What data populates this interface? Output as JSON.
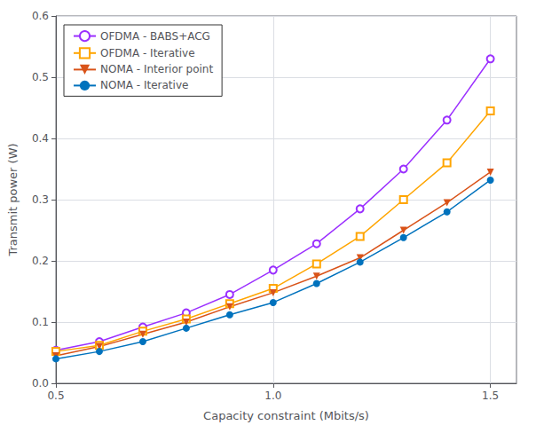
{
  "chart_data": {
    "type": "line",
    "xlabel": "Capacity constraint (Mbits/s)",
    "ylabel": "Transmit power (W)",
    "x": [
      0.5,
      0.6,
      0.7,
      0.8,
      0.9,
      1.0,
      1.1,
      1.2,
      1.3,
      1.4,
      1.5
    ],
    "series": [
      {
        "name": "OFDMA - BABS+ACG",
        "color": "#9B30FF",
        "marker": "circle-open",
        "values": [
          0.054,
          0.068,
          0.092,
          0.115,
          0.145,
          0.185,
          0.228,
          0.285,
          0.35,
          0.43,
          0.53
        ]
      },
      {
        "name": "OFDMA - Iterative",
        "color": "#FFA500",
        "marker": "square-open",
        "values": [
          0.052,
          0.062,
          0.085,
          0.105,
          0.13,
          0.155,
          0.195,
          0.24,
          0.3,
          0.36,
          0.445
        ]
      },
      {
        "name": "NOMA - Interior point",
        "color": "#D95319",
        "marker": "triangle-down",
        "values": [
          0.045,
          0.06,
          0.08,
          0.1,
          0.125,
          0.148,
          0.175,
          0.205,
          0.25,
          0.295,
          0.345
        ]
      },
      {
        "name": "NOMA - Iterative",
        "color": "#0072BD",
        "marker": "circle",
        "values": [
          0.04,
          0.052,
          0.068,
          0.09,
          0.112,
          0.132,
          0.163,
          0.198,
          0.238,
          0.28,
          0.332
        ]
      }
    ],
    "xlim": [
      0.5,
      1.56
    ],
    "ylim": [
      0,
      0.6
    ],
    "xticks": [
      0.5,
      {
        "value": 1.0,
        "label": "1.0"
      },
      1.5
    ],
    "yticks": [
      {
        "value": 0,
        "label": "0.0"
      },
      0.1,
      0.2,
      0.3,
      0.4,
      0.5,
      0.6
    ],
    "grid": true,
    "legend": "upper left"
  }
}
